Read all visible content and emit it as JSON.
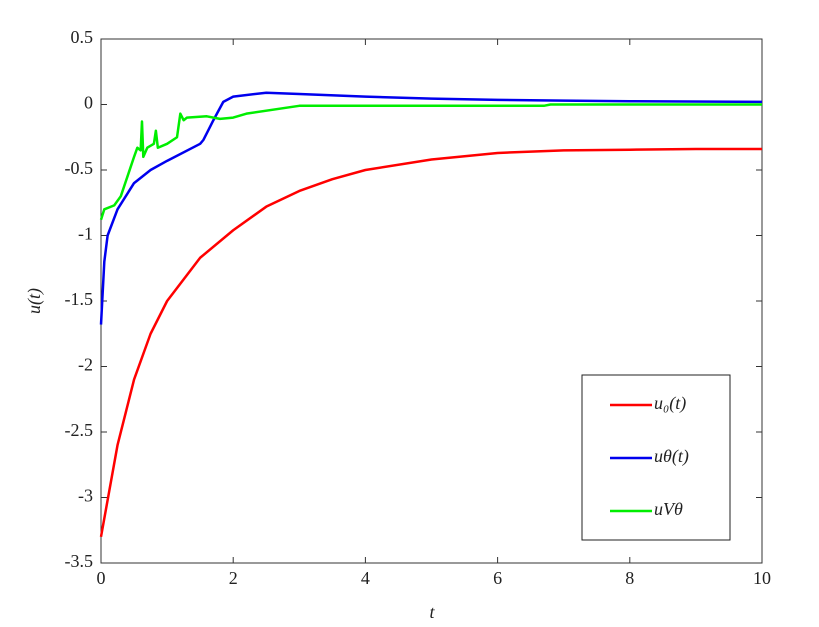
{
  "chart_data": {
    "type": "line",
    "xlabel": "t",
    "ylabel": "u(t)",
    "xlim": [
      0,
      10
    ],
    "xticks": [
      0,
      2,
      4,
      6,
      8,
      10
    ],
    "ylim": [
      -3.5,
      0.5
    ],
    "yticks": [
      -3.5,
      -3,
      -2.5,
      -2,
      -1.5,
      -1,
      -0.5,
      0,
      0.5
    ],
    "legend": "lower right",
    "series": [
      {
        "name": "u₀(t)",
        "color": "#ff0000",
        "x": [
          0,
          0.25,
          0.5,
          0.75,
          1,
          1.5,
          2,
          2.5,
          3,
          3.5,
          4,
          5,
          6,
          7,
          8,
          9,
          10
        ],
        "values": [
          -3.3,
          -2.6,
          -2.1,
          -1.75,
          -1.5,
          -1.17,
          -0.96,
          -0.78,
          -0.66,
          -0.57,
          -0.5,
          -0.42,
          -0.37,
          -0.35,
          -0.345,
          -0.34,
          -0.34
        ]
      },
      {
        "name": "uθ(t)",
        "color": "#0000ee",
        "x": [
          0,
          0.05,
          0.1,
          0.25,
          0.5,
          0.75,
          1,
          1.5,
          1.55,
          1.7,
          1.85,
          2,
          2.5,
          3,
          4,
          5,
          6,
          7,
          8,
          10
        ],
        "values": [
          -1.68,
          -1.2,
          -1.0,
          -0.8,
          -0.6,
          -0.5,
          -0.43,
          -0.3,
          -0.27,
          -0.12,
          0.02,
          0.06,
          0.09,
          0.08,
          0.06,
          0.045,
          0.035,
          0.03,
          0.025,
          0.02
        ]
      },
      {
        "name": "uVθ",
        "color": "#00ee00",
        "x": [
          0,
          0.05,
          0.2,
          0.3,
          0.4,
          0.5,
          0.55,
          0.6,
          0.62,
          0.64,
          0.7,
          0.8,
          0.83,
          0.86,
          1,
          1.15,
          1.2,
          1.25,
          1.3,
          1.6,
          1.8,
          2,
          2.2,
          3,
          6.7,
          6.8,
          10
        ],
        "values": [
          -0.88,
          -0.8,
          -0.77,
          -0.7,
          -0.55,
          -0.4,
          -0.33,
          -0.35,
          -0.13,
          -0.4,
          -0.33,
          -0.3,
          -0.2,
          -0.33,
          -0.3,
          -0.25,
          -0.07,
          -0.12,
          -0.1,
          -0.09,
          -0.11,
          -0.1,
          -0.07,
          -0.01,
          -0.01,
          0,
          0
        ]
      }
    ]
  }
}
